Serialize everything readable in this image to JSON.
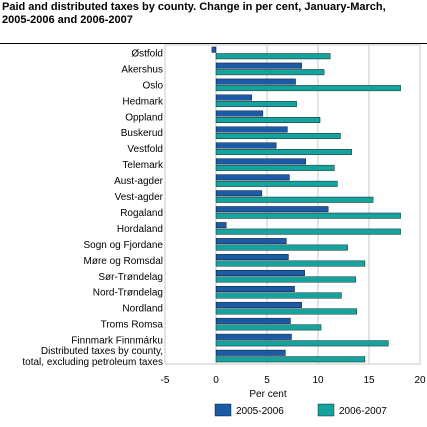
{
  "chart_data": {
    "type": "bar",
    "orientation": "horizontal",
    "title_lines": [
      "Paid and distributed taxes by county. Change in per cent, January-March,",
      "2005-2006 and 2006-2007"
    ],
    "xlabel": "Per cent",
    "xlim": [
      -5,
      20
    ],
    "xticks": [
      "-5",
      "0",
      "5",
      "10",
      "15",
      "20"
    ],
    "grid": "vertical",
    "legend_position": "bottom",
    "categories": [
      [
        "Østfold"
      ],
      [
        "Akershus"
      ],
      [
        "Oslo"
      ],
      [
        "Hedmark"
      ],
      [
        "Oppland"
      ],
      [
        "Buskerud"
      ],
      [
        "Vestfold"
      ],
      [
        "Telemark"
      ],
      [
        "Aust-agder"
      ],
      [
        "Vest-agder"
      ],
      [
        "Rogaland"
      ],
      [
        "Hordaland"
      ],
      [
        "Sogn og Fjordane"
      ],
      [
        "Møre og Romsdal"
      ],
      [
        "Sør-Trøndelag"
      ],
      [
        "Nord-Trøndelag"
      ],
      [
        "Nordland"
      ],
      [
        "Troms Romsa"
      ],
      [
        "Finnmark Finnmárku"
      ],
      [
        "Distributed taxes by county,",
        "total, excluding petroleum taxes"
      ]
    ],
    "series": [
      {
        "name": "2005-2006",
        "color": "#1a5aa6",
        "values": [
          -0.4,
          8.4,
          7.8,
          3.5,
          4.6,
          7.0,
          5.9,
          8.8,
          7.2,
          4.5,
          11.0,
          1.0,
          6.9,
          7.1,
          8.7,
          7.7,
          8.4,
          7.3,
          7.4,
          6.8
        ]
      },
      {
        "name": "2006-2007",
        "color": "#17a39d",
        "values": [
          11.2,
          10.6,
          18.1,
          7.9,
          10.2,
          12.2,
          13.3,
          11.6,
          11.9,
          15.4,
          18.1,
          18.1,
          12.9,
          14.6,
          13.7,
          12.3,
          13.8,
          10.3,
          16.9,
          14.6
        ]
      }
    ]
  }
}
